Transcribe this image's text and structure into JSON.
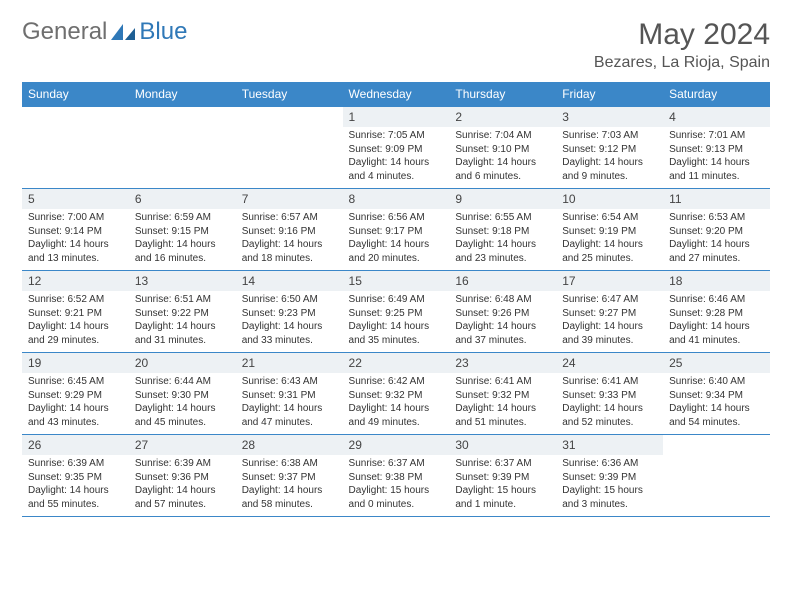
{
  "logo": {
    "general": "General",
    "blue": "Blue"
  },
  "title": "May 2024",
  "location": "Bezares, La Rioja, Spain",
  "colors": {
    "header_bg": "#3b87c8",
    "header_text": "#ffffff",
    "daynum_bg": "#edf1f4",
    "border": "#3b87c8",
    "text": "#333333",
    "title_text": "#555555",
    "logo_gray": "#6f6f6f",
    "logo_blue": "#2f78b7"
  },
  "day_headers": [
    "Sunday",
    "Monday",
    "Tuesday",
    "Wednesday",
    "Thursday",
    "Friday",
    "Saturday"
  ],
  "weeks": [
    [
      {
        "n": "",
        "sr": "",
        "ss": "",
        "dl": ""
      },
      {
        "n": "",
        "sr": "",
        "ss": "",
        "dl": ""
      },
      {
        "n": "",
        "sr": "",
        "ss": "",
        "dl": ""
      },
      {
        "n": "1",
        "sr": "7:05 AM",
        "ss": "9:09 PM",
        "dl": "14 hours and 4 minutes."
      },
      {
        "n": "2",
        "sr": "7:04 AM",
        "ss": "9:10 PM",
        "dl": "14 hours and 6 minutes."
      },
      {
        "n": "3",
        "sr": "7:03 AM",
        "ss": "9:12 PM",
        "dl": "14 hours and 9 minutes."
      },
      {
        "n": "4",
        "sr": "7:01 AM",
        "ss": "9:13 PM",
        "dl": "14 hours and 11 minutes."
      }
    ],
    [
      {
        "n": "5",
        "sr": "7:00 AM",
        "ss": "9:14 PM",
        "dl": "14 hours and 13 minutes."
      },
      {
        "n": "6",
        "sr": "6:59 AM",
        "ss": "9:15 PM",
        "dl": "14 hours and 16 minutes."
      },
      {
        "n": "7",
        "sr": "6:57 AM",
        "ss": "9:16 PM",
        "dl": "14 hours and 18 minutes."
      },
      {
        "n": "8",
        "sr": "6:56 AM",
        "ss": "9:17 PM",
        "dl": "14 hours and 20 minutes."
      },
      {
        "n": "9",
        "sr": "6:55 AM",
        "ss": "9:18 PM",
        "dl": "14 hours and 23 minutes."
      },
      {
        "n": "10",
        "sr": "6:54 AM",
        "ss": "9:19 PM",
        "dl": "14 hours and 25 minutes."
      },
      {
        "n": "11",
        "sr": "6:53 AM",
        "ss": "9:20 PM",
        "dl": "14 hours and 27 minutes."
      }
    ],
    [
      {
        "n": "12",
        "sr": "6:52 AM",
        "ss": "9:21 PM",
        "dl": "14 hours and 29 minutes."
      },
      {
        "n": "13",
        "sr": "6:51 AM",
        "ss": "9:22 PM",
        "dl": "14 hours and 31 minutes."
      },
      {
        "n": "14",
        "sr": "6:50 AM",
        "ss": "9:23 PM",
        "dl": "14 hours and 33 minutes."
      },
      {
        "n": "15",
        "sr": "6:49 AM",
        "ss": "9:25 PM",
        "dl": "14 hours and 35 minutes."
      },
      {
        "n": "16",
        "sr": "6:48 AM",
        "ss": "9:26 PM",
        "dl": "14 hours and 37 minutes."
      },
      {
        "n": "17",
        "sr": "6:47 AM",
        "ss": "9:27 PM",
        "dl": "14 hours and 39 minutes."
      },
      {
        "n": "18",
        "sr": "6:46 AM",
        "ss": "9:28 PM",
        "dl": "14 hours and 41 minutes."
      }
    ],
    [
      {
        "n": "19",
        "sr": "6:45 AM",
        "ss": "9:29 PM",
        "dl": "14 hours and 43 minutes."
      },
      {
        "n": "20",
        "sr": "6:44 AM",
        "ss": "9:30 PM",
        "dl": "14 hours and 45 minutes."
      },
      {
        "n": "21",
        "sr": "6:43 AM",
        "ss": "9:31 PM",
        "dl": "14 hours and 47 minutes."
      },
      {
        "n": "22",
        "sr": "6:42 AM",
        "ss": "9:32 PM",
        "dl": "14 hours and 49 minutes."
      },
      {
        "n": "23",
        "sr": "6:41 AM",
        "ss": "9:32 PM",
        "dl": "14 hours and 51 minutes."
      },
      {
        "n": "24",
        "sr": "6:41 AM",
        "ss": "9:33 PM",
        "dl": "14 hours and 52 minutes."
      },
      {
        "n": "25",
        "sr": "6:40 AM",
        "ss": "9:34 PM",
        "dl": "14 hours and 54 minutes."
      }
    ],
    [
      {
        "n": "26",
        "sr": "6:39 AM",
        "ss": "9:35 PM",
        "dl": "14 hours and 55 minutes."
      },
      {
        "n": "27",
        "sr": "6:39 AM",
        "ss": "9:36 PM",
        "dl": "14 hours and 57 minutes."
      },
      {
        "n": "28",
        "sr": "6:38 AM",
        "ss": "9:37 PM",
        "dl": "14 hours and 58 minutes."
      },
      {
        "n": "29",
        "sr": "6:37 AM",
        "ss": "9:38 PM",
        "dl": "15 hours and 0 minutes."
      },
      {
        "n": "30",
        "sr": "6:37 AM",
        "ss": "9:39 PM",
        "dl": "15 hours and 1 minute."
      },
      {
        "n": "31",
        "sr": "6:36 AM",
        "ss": "9:39 PM",
        "dl": "15 hours and 3 minutes."
      },
      {
        "n": "",
        "sr": "",
        "ss": "",
        "dl": ""
      }
    ]
  ],
  "labels": {
    "sunrise": "Sunrise:",
    "sunset": "Sunset:",
    "daylight": "Daylight:"
  }
}
